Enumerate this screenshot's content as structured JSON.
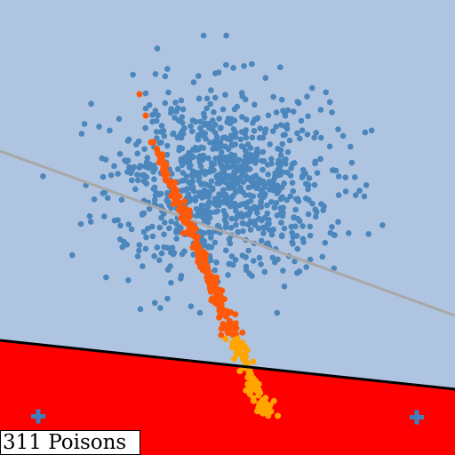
{
  "colors": {
    "background": "#afc4e0",
    "danger_region": "#ff0000",
    "boundary": "#000000",
    "reference_line": "#a8a8a8",
    "clean_points": "#4b86bc",
    "poison_near": "#ff5a0a",
    "poison_far": "#ffa500",
    "marker": "#3f7fbf"
  },
  "status": {
    "poison_count": "311",
    "poison_label": "311 Poisons"
  },
  "icons": {
    "marker": "plus-cross-icon"
  }
}
